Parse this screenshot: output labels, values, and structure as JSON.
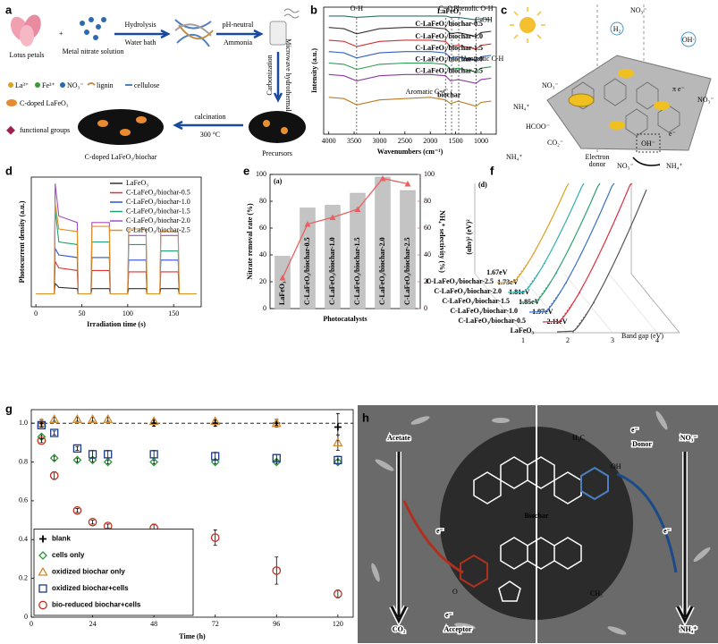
{
  "panel_letters": [
    "a",
    "b",
    "c",
    "d",
    "e",
    "f",
    "g",
    "h"
  ],
  "panels": {
    "a": {
      "texts": [
        "Lotus petals",
        "Metal nitrate solution",
        "Hydrolysis",
        "Water bath",
        "pH-neutral",
        "Ammonia",
        "Carbonization",
        "Microwave hydrothermal",
        "calcination",
        "300 °C",
        "Precursors",
        "C-doped LaFeO₃/biochar",
        "La³⁺",
        "Fe³⁺",
        "NO₃⁻",
        "lignin",
        "cellulose",
        "C-doped LaFeO₃",
        "functional groups"
      ]
    },
    "c": {
      "texts": [
        "NO₃⁻",
        "H₂",
        "OH·",
        "NO₃⁻",
        "NH₄⁺",
        "HCOO⁻",
        "CO₂⁻",
        "NH₄⁺",
        "π e⁻",
        "NO₃⁻",
        "Electron",
        "donor",
        "OH⁻",
        "e⁻",
        "NO₃⁻",
        "NH₄⁺"
      ]
    },
    "h": {
      "texts": [
        "Acetate",
        "CO₂",
        "e⁻",
        "e⁻",
        "Acceptor",
        "Biochar",
        "e⁻",
        "Donor",
        "NO₃⁻",
        "NH₄⁺",
        "e⁻",
        "OH",
        "H₃C",
        "CH₃",
        "O"
      ]
    }
  },
  "chart_data": [
    {
      "type": "line",
      "legend": "inline",
      "xlabel": "Wavenumbers (cm⁻¹)",
      "ylabel": "Intensity (a.u.)",
      "x": [
        4000,
        3700,
        3450,
        3000,
        2500,
        2000,
        1700,
        1600,
        1450,
        1100,
        1000,
        800
      ],
      "xlim": [
        4100,
        700
      ],
      "xticks": [
        4000,
        3500,
        3000,
        2500,
        2000,
        1500,
        1000
      ],
      "ylim": [
        0,
        10
      ],
      "vlines": [
        3450,
        1700,
        1580,
        1440,
        1100
      ],
      "annotations": [
        "O-H",
        "C=O",
        "Phenolic O-H",
        "C-OH",
        "Aromatic C-H",
        "Aromatic C=C"
      ],
      "series": [
        {
          "name": "LaFeO₃",
          "color": "#2f6f6f",
          "values": [
            9.3,
            9.3,
            9.2,
            9.3,
            9.3,
            9.3,
            9.3,
            9.2,
            9.2,
            9.0,
            9.1,
            9.0
          ]
        },
        {
          "name": "C-LaFeO₃/biochar-0.5",
          "color": "#333333",
          "values": [
            8.4,
            8.3,
            7.9,
            8.3,
            8.4,
            8.4,
            8.3,
            7.9,
            8.0,
            7.7,
            8.0,
            8.1
          ]
        },
        {
          "name": "C-LaFeO₃/biochar-1.0",
          "color": "#d03030",
          "values": [
            7.4,
            7.3,
            6.9,
            7.3,
            7.4,
            7.4,
            7.3,
            6.9,
            7.0,
            6.7,
            7.0,
            7.1
          ]
        },
        {
          "name": "C-LaFeO₃/biochar-1.5",
          "color": "#3060c0",
          "values": [
            6.5,
            6.4,
            6.0,
            6.4,
            6.5,
            6.5,
            6.4,
            6.0,
            6.1,
            5.8,
            6.1,
            6.2
          ]
        },
        {
          "name": "C-LaFeO₃/biochar-2.0",
          "color": "#2a9a50",
          "values": [
            5.6,
            5.5,
            5.1,
            5.5,
            5.6,
            5.6,
            5.5,
            5.1,
            5.2,
            4.9,
            5.2,
            5.3
          ]
        },
        {
          "name": "C-LaFeO₃/biochar-2.5",
          "color": "#8a3aa0",
          "values": [
            4.7,
            4.6,
            4.2,
            4.6,
            4.7,
            4.7,
            4.6,
            4.2,
            4.3,
            4.0,
            4.3,
            4.4
          ]
        },
        {
          "name": "biochar",
          "color": "#c07a20",
          "values": [
            2.9,
            2.8,
            2.3,
            2.7,
            2.8,
            2.9,
            2.7,
            2.4,
            2.6,
            2.2,
            2.5,
            2.6
          ]
        }
      ]
    },
    {
      "type": "line",
      "legend": "upper right",
      "xlabel": "Irradiation time (s)",
      "ylabel": "Photocurrent density (a.u.)",
      "x": [
        0,
        20,
        21,
        25,
        45,
        46,
        60,
        61,
        80,
        81,
        100,
        101,
        120,
        121,
        135,
        136,
        155,
        156,
        175
      ],
      "xlim": [
        -5,
        180
      ],
      "xticks": [
        0,
        50,
        100,
        150
      ],
      "ylim": [
        0,
        10
      ],
      "series": [
        {
          "name": "LaFeO₃",
          "color": "#333333",
          "values": [
            1,
            1,
            1.8,
            1.5,
            1.4,
            1,
            1,
            1.4,
            1.4,
            1,
            1,
            1.4,
            1.4,
            1,
            1,
            1.4,
            1.4,
            1,
            1
          ]
        },
        {
          "name": "C-LaFeO₃/biochar-0.5",
          "color": "#e03030",
          "values": [
            1,
            1,
            3.5,
            3,
            2.8,
            1,
            1,
            2.8,
            2.8,
            1,
            1,
            2.7,
            2.7,
            1,
            1,
            2.7,
            2.7,
            1,
            1
          ]
        },
        {
          "name": "C-LaFeO₃/biochar-1.0",
          "color": "#3050d0",
          "values": [
            1,
            1,
            4.5,
            4,
            3.8,
            1,
            1,
            3.8,
            3.8,
            1,
            1,
            3.6,
            3.6,
            1,
            1,
            3.6,
            3.6,
            1,
            1
          ]
        },
        {
          "name": "C-LaFeO₃/biochar-1.5",
          "color": "#20a070",
          "values": [
            1,
            1,
            7.5,
            5,
            4.8,
            1,
            1,
            5,
            5,
            1,
            1,
            4.8,
            4.8,
            1,
            1,
            4.3,
            4.3,
            1,
            1
          ]
        },
        {
          "name": "C-LaFeO₃/biochar-2.0",
          "color": "#a050c0",
          "values": [
            1,
            1,
            9.5,
            7,
            6.5,
            1,
            1,
            6.5,
            6.5,
            1,
            1,
            5.5,
            5.5,
            1,
            1,
            5.5,
            5.5,
            1,
            1
          ]
        },
        {
          "name": "C-LaFeO₃/biochar-2.5",
          "color": "#e09020",
          "values": [
            1,
            1,
            8,
            6,
            5.8,
            1,
            1,
            6.2,
            6.2,
            1,
            1,
            6,
            6,
            1,
            1,
            5.8,
            5.8,
            1,
            1
          ]
        }
      ]
    },
    {
      "type": "bar",
      "annotation": "(a)",
      "xlabel": "Photocatalysts",
      "ylabel": "Nitrate removal rate (%)",
      "y2label": "NH₄⁺ selectivity (%)",
      "categories": [
        "LaFeO₃",
        "C-LaFeO₃/biochar-0.5",
        "C-LaFeO₃/biochar-1.0",
        "C-LaFeO₃/biochar-1.5",
        "C-LaFeO₃/biochar-2.0",
        "C-LaFeO₃/biochar-2.5"
      ],
      "ylim": [
        0,
        100
      ],
      "yticks": [
        0,
        20,
        40,
        60,
        80,
        100
      ],
      "y2lim": [
        0,
        100
      ],
      "y2ticks": [
        0,
        20,
        40,
        60,
        80,
        100
      ],
      "series": [
        {
          "color": "#c4c4c4",
          "values": [
            39,
            75,
            77,
            86,
            98,
            88
          ]
        },
        {
          "color": "#e86060",
          "axis": "y2",
          "values": [
            23,
            63,
            68,
            74,
            97,
            93
          ]
        }
      ]
    },
    {
      "type": "tauc",
      "annotation": "(d)",
      "xlabel": "Band gap (eV)",
      "ylabel": "(αhν)² (eV)²",
      "xlim": [
        1,
        4
      ],
      "xticks": [
        1,
        2,
        3,
        4
      ],
      "series": [
        {
          "name": "LaFeO₃",
          "color": "#555555",
          "value": 2.11,
          "value_label": "2.11eV"
        },
        {
          "name": "C-LaFeO₃/biochar-0.5",
          "color": "#d83040",
          "value": 1.97,
          "value_label": "1.97eV"
        },
        {
          "name": "C-LaFeO₃/biochar-1.0",
          "color": "#3a70c0",
          "value": 1.85,
          "value_label": "1.85eV"
        },
        {
          "name": "C-LaFeO₃/biochar-1.5",
          "color": "#30a070",
          "value": 1.81,
          "value_label": "1.81eV"
        },
        {
          "name": "C-LaFeO₃/biochar-2.0",
          "color": "#30b0b0",
          "value": 1.73,
          "value_label": "1.73eV"
        },
        {
          "name": "C-LaFeO₃/biochar-2.5",
          "color": "#e0a020",
          "value": 1.67,
          "value_label": "1.67eV"
        }
      ]
    },
    {
      "type": "scatter",
      "legend": "lower left",
      "xlabel": "Time (h)",
      "xlim": [
        0,
        126
      ],
      "xticks": [
        0,
        24,
        48,
        72,
        96,
        120
      ],
      "ylim": [
        0,
        1.07
      ],
      "yticks": [
        0,
        0.2,
        0.4,
        0.6,
        0.8,
        {
          "value": 1,
          "label": "1.0"
        }
      ],
      "hline": 1,
      "series": [
        {
          "name": "blank",
          "color": "#000000",
          "marker": "plus",
          "x": [
            4,
            48,
            72,
            96,
            120
          ],
          "values": [
            1.0,
            1.0,
            1.0,
            1.0,
            0.98
          ],
          "errors": [
            0.02,
            0.015,
            0.015,
            0.02,
            0.07
          ]
        },
        {
          "name": "cells only",
          "color": "#2a9a3a",
          "marker": "diamond",
          "x": [
            4,
            9,
            18,
            24,
            30,
            48,
            72,
            96,
            120
          ],
          "values": [
            0.93,
            0.82,
            0.81,
            0.81,
            0.8,
            0.8,
            0.8,
            0.8,
            0.8
          ],
          "errors": [
            0.01,
            0.01,
            0.01,
            0.01,
            0.01,
            0.01,
            0.01,
            0.01,
            0.01
          ]
        },
        {
          "name": "oxidized biochar only",
          "color": "#d08a30",
          "marker": "triangle",
          "x": [
            4,
            9,
            18,
            24,
            30,
            48,
            72,
            96,
            120
          ],
          "values": [
            1.0,
            1.02,
            1.02,
            1.02,
            1.02,
            1.01,
            1.01,
            1.0,
            0.9
          ],
          "errors": [
            0.02,
            0.01,
            0.01,
            0.01,
            0.01,
            0.01,
            0.01,
            0.01,
            0.04
          ]
        },
        {
          "name": "oxidized biochar+cells",
          "color": "#1a3a8a",
          "marker": "square",
          "x": [
            4,
            9,
            18,
            24,
            30,
            48,
            72,
            96,
            120
          ],
          "values": [
            0.99,
            0.95,
            0.87,
            0.84,
            0.84,
            0.84,
            0.83,
            0.82,
            0.81
          ],
          "errors": [
            0.01,
            0.01,
            0.01,
            0.02,
            0.02,
            0.02,
            0.02,
            0.02,
            0.02
          ]
        },
        {
          "name": "bio-reduced biochar+cells",
          "color": "#c03020",
          "marker": "circle",
          "x": [
            4,
            9,
            18,
            24,
            30,
            48,
            72,
            96,
            120
          ],
          "values": [
            0.91,
            0.73,
            0.55,
            0.49,
            0.47,
            0.46,
            0.41,
            0.24,
            0.12
          ],
          "errors": [
            0.01,
            0.02,
            0.01,
            0.01,
            0.01,
            0.02,
            0.04,
            0.07,
            0.02
          ]
        }
      ]
    }
  ]
}
